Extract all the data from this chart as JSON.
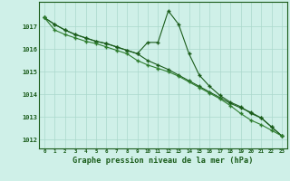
{
  "xlabel": "Graphe pression niveau de la mer (hPa)",
  "bg_color": "#cff0e8",
  "grid_color": "#aad8cc",
  "line_color1": "#1a5c1a",
  "line_color2": "#1a5c1a",
  "line_color3": "#2e7d2e",
  "x": [
    0,
    1,
    2,
    3,
    4,
    5,
    6,
    7,
    8,
    9,
    10,
    11,
    12,
    13,
    14,
    15,
    16,
    17,
    18,
    19,
    20,
    21,
    22,
    23
  ],
  "line1": [
    1017.4,
    1017.1,
    1016.85,
    1016.65,
    1016.5,
    1016.35,
    1016.25,
    1016.1,
    1015.95,
    1015.8,
    1016.3,
    1016.3,
    1017.7,
    1017.1,
    1015.8,
    1014.85,
    1014.35,
    1013.95,
    1013.65,
    1013.45,
    1013.15,
    1012.95,
    1012.55,
    1012.15
  ],
  "line2": [
    1017.4,
    1017.1,
    1016.85,
    1016.65,
    1016.5,
    1016.35,
    1016.25,
    1016.1,
    1015.95,
    1015.8,
    1015.5,
    1015.3,
    1015.1,
    1014.85,
    1014.6,
    1014.35,
    1014.1,
    1013.85,
    1013.6,
    1013.4,
    1013.2,
    1012.95,
    1012.55,
    1012.15
  ],
  "line3": [
    1017.4,
    1016.85,
    1016.65,
    1016.5,
    1016.35,
    1016.25,
    1016.1,
    1015.95,
    1015.8,
    1015.5,
    1015.3,
    1015.15,
    1015.0,
    1014.8,
    1014.55,
    1014.3,
    1014.05,
    1013.8,
    1013.5,
    1013.15,
    1012.85,
    1012.65,
    1012.4,
    1012.15
  ],
  "ylim_min": 1011.6,
  "ylim_max": 1018.1,
  "yticks": [
    1012,
    1013,
    1014,
    1015,
    1016,
    1017
  ],
  "text_color": "#1a5c1a",
  "marker": "+",
  "markersize": 3.5,
  "linewidth": 0.8
}
